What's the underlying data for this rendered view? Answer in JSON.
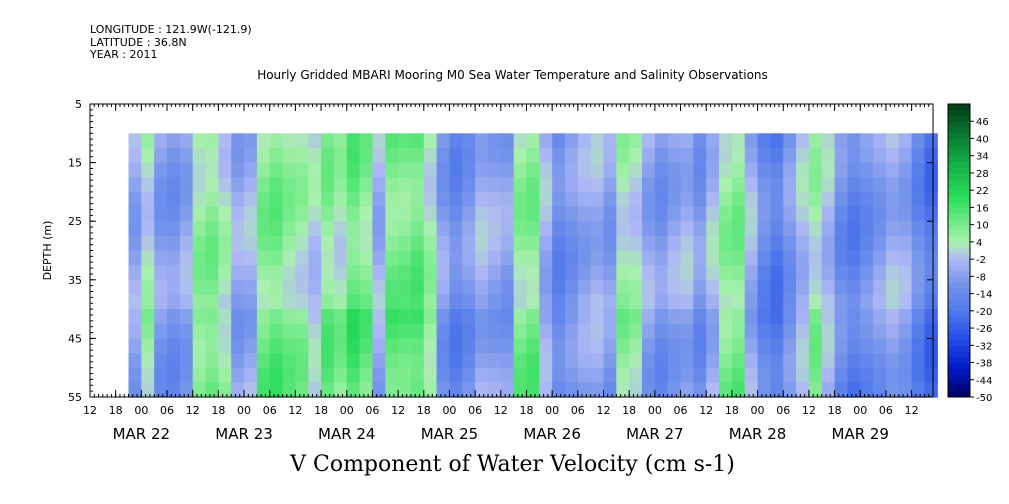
{
  "header": {
    "longitude": "LONGITUDE : 121.9W(-121.9)",
    "latitude": "LATITUDE : 36.8N",
    "year": "YEAR : 2011"
  },
  "chart_data": {
    "type": "heatmap",
    "title": "Hourly Gridded MBARI Mooring M0 Sea Water Temperature and Salinity Observations",
    "xlabel": "V Component of Water Velocity (cm s-1)",
    "ylabel": "DEPTH (m)",
    "xlim_hours_from_mar22_00": [
      -12,
      185
    ],
    "ylim": [
      55,
      5
    ],
    "data_depth_range": [
      10,
      55
    ],
    "data_time_range_hours": [
      -3,
      183
    ],
    "y_ticks": [
      5,
      15,
      25,
      35,
      45,
      55
    ],
    "x_hour_tick_labels": [
      "12",
      "18",
      "00",
      "06",
      "12",
      "18",
      "00",
      "06",
      "12",
      "18",
      "00",
      "06",
      "12",
      "18",
      "00",
      "06",
      "12",
      "18",
      "00",
      "06",
      "12",
      "18",
      "00",
      "06",
      "12",
      "18",
      "00",
      "06",
      "12",
      "18",
      "00",
      "06",
      "12"
    ],
    "x_day_labels": [
      "MAR 22",
      "MAR 23",
      "MAR 24",
      "MAR 25",
      "MAR 26",
      "MAR 27",
      "MAR 28",
      "MAR 29"
    ],
    "colorbar_ticks": [
      46,
      40,
      34,
      28,
      22,
      16,
      10,
      4,
      -2,
      -8,
      -14,
      -20,
      -26,
      -32,
      -38,
      -44,
      -50
    ],
    "colorbar_range": [
      -50,
      52
    ],
    "column_means_every_3h": [
      {
        "t": -3,
        "v": -6
      },
      {
        "t": 0,
        "v": 2
      },
      {
        "t": 3,
        "v": -8
      },
      {
        "t": 6,
        "v": -10
      },
      {
        "t": 9,
        "v": -6
      },
      {
        "t": 12,
        "v": 6
      },
      {
        "t": 15,
        "v": 8
      },
      {
        "t": 18,
        "v": 2
      },
      {
        "t": 21,
        "v": -6
      },
      {
        "t": 24,
        "v": -4
      },
      {
        "t": 27,
        "v": 8
      },
      {
        "t": 30,
        "v": 10
      },
      {
        "t": 33,
        "v": 6
      },
      {
        "t": 36,
        "v": 4
      },
      {
        "t": 39,
        "v": 0
      },
      {
        "t": 42,
        "v": 8
      },
      {
        "t": 45,
        "v": 4
      },
      {
        "t": 48,
        "v": 12
      },
      {
        "t": 51,
        "v": 8
      },
      {
        "t": 54,
        "v": -4
      },
      {
        "t": 57,
        "v": 10
      },
      {
        "t": 60,
        "v": 10
      },
      {
        "t": 63,
        "v": 12
      },
      {
        "t": 66,
        "v": 4
      },
      {
        "t": 69,
        "v": -8
      },
      {
        "t": 72,
        "v": -14
      },
      {
        "t": 75,
        "v": -10
      },
      {
        "t": 78,
        "v": -4
      },
      {
        "t": 81,
        "v": -6
      },
      {
        "t": 84,
        "v": -8
      },
      {
        "t": 87,
        "v": 6
      },
      {
        "t": 90,
        "v": 8
      },
      {
        "t": 93,
        "v": -4
      },
      {
        "t": 96,
        "v": -14
      },
      {
        "t": 99,
        "v": -10
      },
      {
        "t": 102,
        "v": -6
      },
      {
        "t": 105,
        "v": -4
      },
      {
        "t": 108,
        "v": -8
      },
      {
        "t": 111,
        "v": 4
      },
      {
        "t": 114,
        "v": 2
      },
      {
        "t": 117,
        "v": -6
      },
      {
        "t": 120,
        "v": -10
      },
      {
        "t": 123,
        "v": -6
      },
      {
        "t": 126,
        "v": -4
      },
      {
        "t": 129,
        "v": -10
      },
      {
        "t": 132,
        "v": -2
      },
      {
        "t": 135,
        "v": 6
      },
      {
        "t": 138,
        "v": 8
      },
      {
        "t": 141,
        "v": -4
      },
      {
        "t": 144,
        "v": -14
      },
      {
        "t": 147,
        "v": -18
      },
      {
        "t": 150,
        "v": -10
      },
      {
        "t": 153,
        "v": -2
      },
      {
        "t": 156,
        "v": 4
      },
      {
        "t": 159,
        "v": -2
      },
      {
        "t": 162,
        "v": -12
      },
      {
        "t": 165,
        "v": -16
      },
      {
        "t": 168,
        "v": -12
      },
      {
        "t": 171,
        "v": -8
      },
      {
        "t": 174,
        "v": -4
      },
      {
        "t": 177,
        "v": -6
      },
      {
        "t": 180,
        "v": -14
      },
      {
        "t": 183,
        "v": -20
      }
    ],
    "grid": false,
    "colorbar_placement": "right"
  }
}
